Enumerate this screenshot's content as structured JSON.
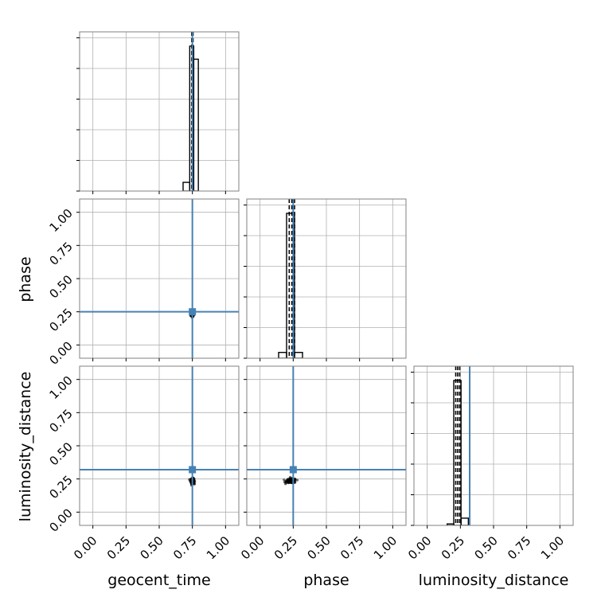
{
  "chart_data": {
    "type": "corner",
    "parameters": [
      "geocent_time",
      "phase",
      "luminosity_distance"
    ],
    "axis_range": [
      -0.1,
      1.1
    ],
    "tick_values": [
      0,
      0.25,
      0.5,
      0.75,
      1
    ],
    "tick_labels": [
      "0.00",
      "0.25",
      "0.50",
      "0.75",
      "1.00"
    ],
    "xlabels": [
      "geocent_time",
      "phase",
      "luminosity_distance"
    ],
    "ylabels": [
      "",
      "phase",
      "luminosity_distance"
    ],
    "grid": true,
    "colors": {
      "truth": "#4682b4",
      "samples": "#000000",
      "grid": "#b0b0b0",
      "frame": "#808080"
    },
    "truths": {
      "geocent_time": 0.75,
      "phase": 0.25,
      "luminosity_distance": 0.32
    },
    "quantiles": {
      "geocent_time": [
        0.745,
        0.75,
        0.755
      ],
      "phase": [
        0.22,
        0.24,
        0.26
      ],
      "luminosity_distance": [
        0.215,
        0.23,
        0.245
      ]
    },
    "histograms": [
      {
        "param": "geocent_time",
        "bins": [
          [
            0.68,
            0.73,
            0.06
          ],
          [
            0.73,
            0.76,
            1.0
          ],
          [
            0.76,
            0.795,
            0.91
          ]
        ]
      },
      {
        "param": "phase",
        "bins": [
          [
            0.14,
            0.2,
            0.04
          ],
          [
            0.2,
            0.26,
            1.0
          ],
          [
            0.26,
            0.32,
            0.04
          ]
        ]
      },
      {
        "param": "luminosity_distance",
        "bins": [
          [
            0.15,
            0.2,
            0.01
          ],
          [
            0.2,
            0.255,
            1.0
          ],
          [
            0.255,
            0.31,
            0.05
          ]
        ]
      }
    ],
    "scatter": [
      {
        "x": "geocent_time",
        "y": "phase",
        "center": [
          0.75,
          0.235
        ],
        "spread": [
          0.012,
          0.02
        ]
      },
      {
        "x": "geocent_time",
        "y": "luminosity_distance",
        "center": [
          0.75,
          0.235
        ],
        "spread": [
          0.012,
          0.018
        ]
      },
      {
        "x": "phase",
        "y": "luminosity_distance",
        "center": [
          0.235,
          0.235
        ],
        "spread": [
          0.035,
          0.016
        ]
      }
    ]
  }
}
